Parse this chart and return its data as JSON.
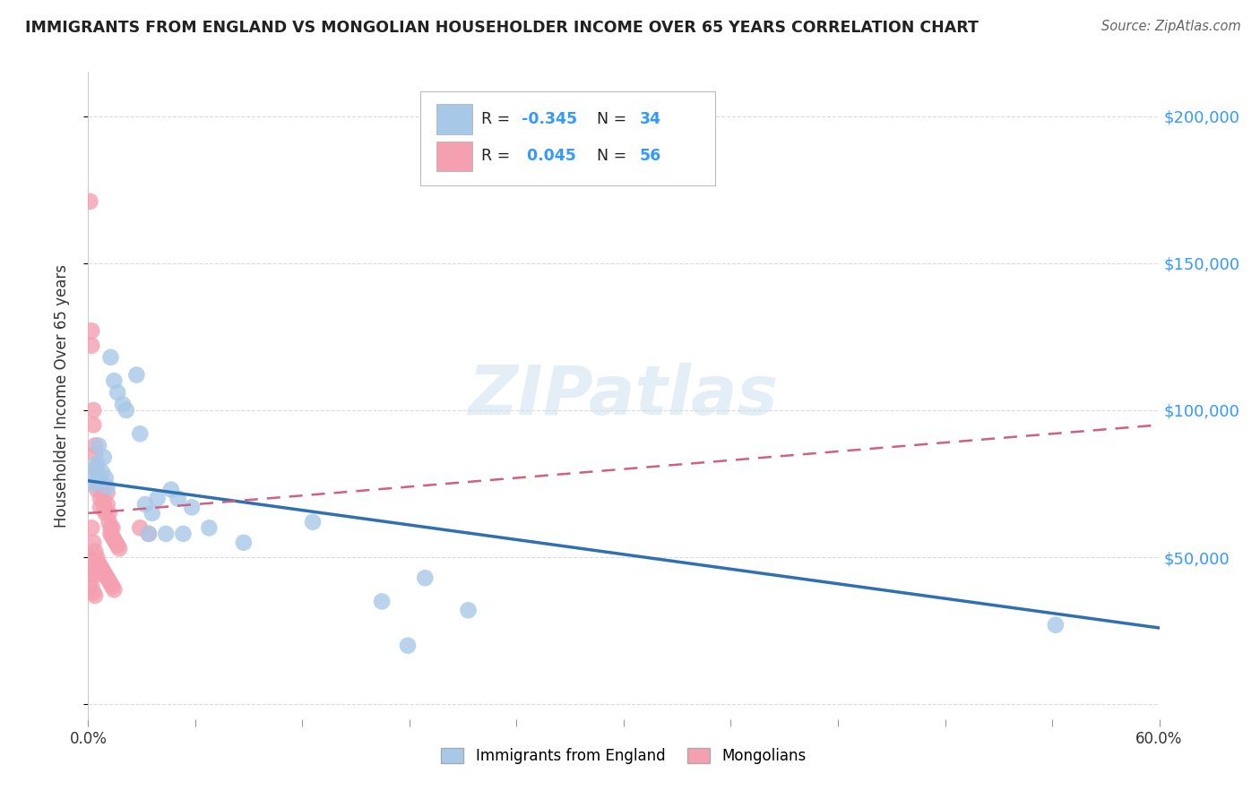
{
  "title": "IMMIGRANTS FROM ENGLAND VS MONGOLIAN HOUSEHOLDER INCOME OVER 65 YEARS CORRELATION CHART",
  "source": "Source: ZipAtlas.com",
  "ylabel": "Householder Income Over 65 years",
  "legend_label1": "Immigrants from England",
  "legend_label2": "Mongolians",
  "r1": "-0.345",
  "n1": "34",
  "r2": "0.045",
  "n2": "56",
  "blue_color": "#a8c8e8",
  "pink_color": "#f4a0b0",
  "blue_line_color": "#3070b0",
  "pink_line_color": "#d06080",
  "background_color": "#ffffff",
  "grid_color": "#cccccc",
  "watermark": "ZIPatlas",
  "blue_scatter": [
    [
      0.002,
      78000
    ],
    [
      0.003,
      75000
    ],
    [
      0.004,
      80000
    ],
    [
      0.005,
      82000
    ],
    [
      0.006,
      88000
    ],
    [
      0.007,
      76000
    ],
    [
      0.008,
      79000
    ],
    [
      0.009,
      84000
    ],
    [
      0.01,
      77000
    ],
    [
      0.011,
      74000
    ],
    [
      0.013,
      118000
    ],
    [
      0.015,
      110000
    ],
    [
      0.017,
      106000
    ],
    [
      0.02,
      102000
    ],
    [
      0.022,
      100000
    ],
    [
      0.028,
      112000
    ],
    [
      0.03,
      92000
    ],
    [
      0.033,
      68000
    ],
    [
      0.037,
      65000
    ],
    [
      0.04,
      70000
    ],
    [
      0.048,
      73000
    ],
    [
      0.052,
      70000
    ],
    [
      0.06,
      67000
    ],
    [
      0.07,
      60000
    ],
    [
      0.09,
      55000
    ],
    [
      0.13,
      62000
    ],
    [
      0.195,
      43000
    ],
    [
      0.22,
      32000
    ],
    [
      0.56,
      27000
    ],
    [
      0.035,
      58000
    ],
    [
      0.045,
      58000
    ],
    [
      0.055,
      58000
    ],
    [
      0.17,
      35000
    ],
    [
      0.185,
      20000
    ]
  ],
  "pink_scatter": [
    [
      0.001,
      171000
    ],
    [
      0.002,
      127000
    ],
    [
      0.002,
      122000
    ],
    [
      0.003,
      100000
    ],
    [
      0.003,
      95000
    ],
    [
      0.004,
      88000
    ],
    [
      0.004,
      85000
    ],
    [
      0.005,
      80000
    ],
    [
      0.005,
      76000
    ],
    [
      0.005,
      73000
    ],
    [
      0.006,
      78000
    ],
    [
      0.006,
      75000
    ],
    [
      0.007,
      70000
    ],
    [
      0.007,
      67000
    ],
    [
      0.008,
      75000
    ],
    [
      0.008,
      72000
    ],
    [
      0.009,
      69000
    ],
    [
      0.009,
      68000
    ],
    [
      0.01,
      66000
    ],
    [
      0.01,
      65000
    ],
    [
      0.011,
      72000
    ],
    [
      0.011,
      68000
    ],
    [
      0.012,
      65000
    ],
    [
      0.012,
      62000
    ],
    [
      0.013,
      60000
    ],
    [
      0.013,
      58000
    ],
    [
      0.014,
      60000
    ],
    [
      0.014,
      57000
    ],
    [
      0.015,
      56000
    ],
    [
      0.016,
      55000
    ],
    [
      0.017,
      54000
    ],
    [
      0.018,
      53000
    ],
    [
      0.002,
      60000
    ],
    [
      0.003,
      55000
    ],
    [
      0.004,
      52000
    ],
    [
      0.005,
      50000
    ],
    [
      0.006,
      48000
    ],
    [
      0.007,
      47000
    ],
    [
      0.008,
      46000
    ],
    [
      0.009,
      45000
    ],
    [
      0.01,
      44000
    ],
    [
      0.011,
      43000
    ],
    [
      0.012,
      42000
    ],
    [
      0.013,
      41000
    ],
    [
      0.014,
      40000
    ],
    [
      0.015,
      39000
    ],
    [
      0.001,
      42000
    ],
    [
      0.002,
      40000
    ],
    [
      0.003,
      38000
    ],
    [
      0.004,
      37000
    ],
    [
      0.001,
      50000
    ],
    [
      0.002,
      48000
    ],
    [
      0.003,
      46000
    ],
    [
      0.004,
      44000
    ],
    [
      0.03,
      60000
    ],
    [
      0.035,
      58000
    ]
  ],
  "xlim": [
    0.0,
    0.62
  ],
  "ylim": [
    -5000,
    215000
  ],
  "yticks": [
    0,
    50000,
    100000,
    150000,
    200000
  ],
  "ytick_labels": [
    "",
    "$50,000",
    "$100,000",
    "$150,000",
    "$200,000"
  ],
  "xticks": [
    0.0,
    0.062,
    0.124,
    0.186,
    0.248,
    0.31,
    0.372,
    0.434,
    0.496,
    0.558,
    0.62
  ],
  "xtick_labels": [
    "0.0%",
    "",
    "",
    "",
    "",
    "",
    "",
    "",
    "",
    "",
    "60.0%"
  ],
  "blue_trendline_x": [
    0.0,
    0.62
  ],
  "blue_trendline_y": [
    76000,
    26000
  ],
  "pink_trendline_x": [
    0.0,
    0.62
  ],
  "pink_trendline_y": [
    65000,
    95000
  ]
}
